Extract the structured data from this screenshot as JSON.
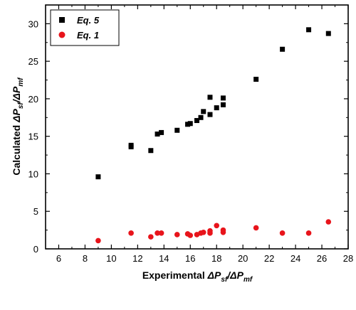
{
  "chart_data": {
    "type": "scatter",
    "xlabel": {
      "prefix": "Experimental ",
      "math": "ΔP",
      "sub1": "sf",
      "mid": "/ΔP",
      "sub2": "mf"
    },
    "ylabel": {
      "prefix": "Calculated ",
      "math": "ΔP",
      "sub1": "sf",
      "mid": "/ΔP",
      "sub2": "mf"
    },
    "xlim": [
      5,
      28
    ],
    "ylim": [
      0,
      32.5
    ],
    "xticks": [
      6,
      8,
      10,
      12,
      14,
      16,
      18,
      20,
      22,
      24,
      26,
      28
    ],
    "yticks": [
      0,
      5,
      10,
      15,
      20,
      25,
      30
    ],
    "grid": false,
    "legend_position": "top-left",
    "series": [
      {
        "name": "Eq. 5",
        "marker": "square",
        "color": "#000000",
        "points": [
          {
            "x": 9.0,
            "y": 9.6
          },
          {
            "x": 11.5,
            "y": 13.6
          },
          {
            "x": 11.5,
            "y": 13.8
          },
          {
            "x": 13.0,
            "y": 13.1
          },
          {
            "x": 13.5,
            "y": 15.3
          },
          {
            "x": 13.8,
            "y": 15.5
          },
          {
            "x": 15.0,
            "y": 15.8
          },
          {
            "x": 15.8,
            "y": 16.6
          },
          {
            "x": 16.0,
            "y": 16.7
          },
          {
            "x": 16.5,
            "y": 17.1
          },
          {
            "x": 16.8,
            "y": 17.5
          },
          {
            "x": 17.0,
            "y": 18.3
          },
          {
            "x": 17.5,
            "y": 17.9
          },
          {
            "x": 17.5,
            "y": 20.2
          },
          {
            "x": 18.0,
            "y": 18.8
          },
          {
            "x": 18.5,
            "y": 19.2
          },
          {
            "x": 18.5,
            "y": 20.1
          },
          {
            "x": 21.0,
            "y": 22.6
          },
          {
            "x": 23.0,
            "y": 26.6
          },
          {
            "x": 25.0,
            "y": 29.2
          },
          {
            "x": 26.5,
            "y": 28.7
          }
        ]
      },
      {
        "name": "Eq. 1",
        "marker": "circle",
        "color": "#e8141b",
        "points": [
          {
            "x": 9.0,
            "y": 1.1
          },
          {
            "x": 11.5,
            "y": 2.1
          },
          {
            "x": 13.0,
            "y": 1.6
          },
          {
            "x": 13.5,
            "y": 2.1
          },
          {
            "x": 13.8,
            "y": 2.1
          },
          {
            "x": 15.0,
            "y": 1.9
          },
          {
            "x": 15.8,
            "y": 2.0
          },
          {
            "x": 16.0,
            "y": 1.8
          },
          {
            "x": 16.5,
            "y": 1.9
          },
          {
            "x": 16.8,
            "y": 2.1
          },
          {
            "x": 17.0,
            "y": 2.2
          },
          {
            "x": 17.5,
            "y": 2.1
          },
          {
            "x": 17.5,
            "y": 2.4
          },
          {
            "x": 18.0,
            "y": 3.1
          },
          {
            "x": 18.5,
            "y": 2.2
          },
          {
            "x": 18.5,
            "y": 2.5
          },
          {
            "x": 21.0,
            "y": 2.8
          },
          {
            "x": 23.0,
            "y": 2.1
          },
          {
            "x": 25.0,
            "y": 2.1
          },
          {
            "x": 26.5,
            "y": 3.6
          }
        ]
      }
    ]
  }
}
